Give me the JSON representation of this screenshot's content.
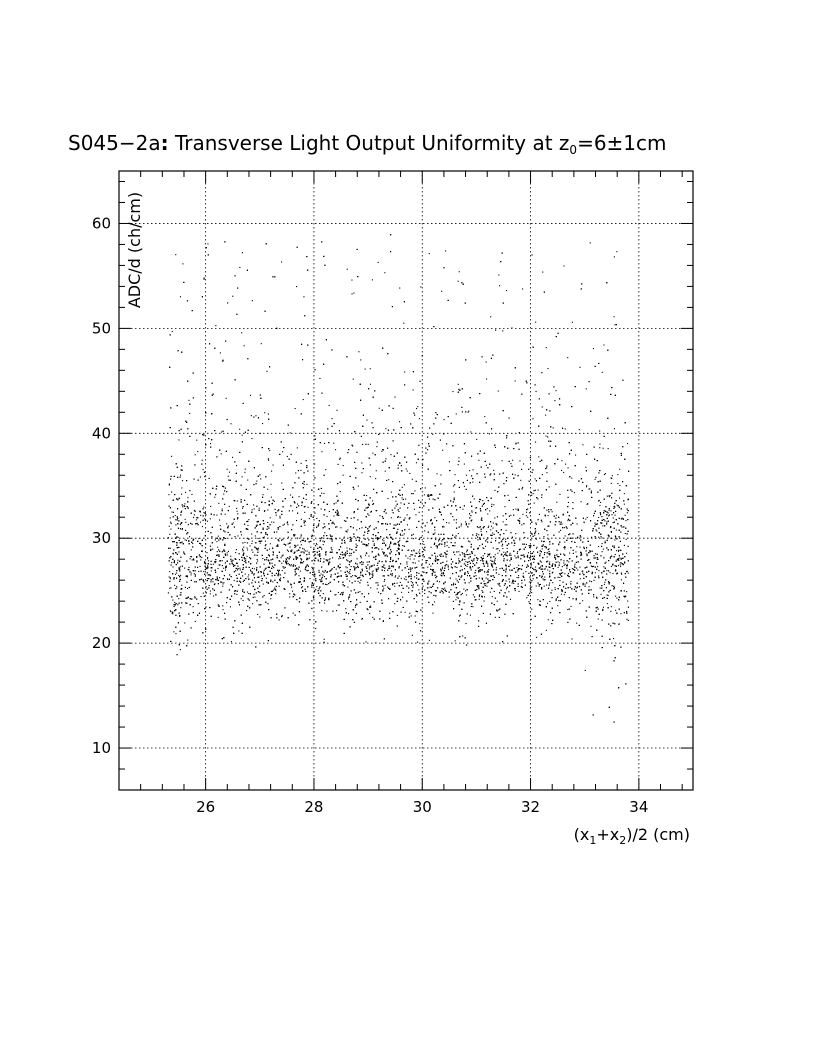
{
  "chart_data": {
    "type": "scatter",
    "title_main": "S045−2a",
    "title_colon": ":",
    "title_rest": " Transverse Light Output Uniformity at z",
    "title_sub": "0",
    "title_end": "=6±1cm",
    "xlabel_parts": [
      "(x",
      "1",
      "+x",
      "2",
      ")/2 (cm)"
    ],
    "ylabel": "ADC/d (ch/cm)",
    "xlim": [
      24.4,
      35.0
    ],
    "ylim": [
      6.0,
      65.0
    ],
    "xticks": [
      26,
      28,
      30,
      32,
      34
    ],
    "xtick_labels": [
      "26",
      "28",
      "30",
      "32",
      "34"
    ],
    "yticks": [
      10,
      20,
      30,
      40,
      50,
      60
    ],
    "ytick_labels": [
      "10",
      "20",
      "30",
      "40",
      "50",
      "60"
    ],
    "x_minor_step": 0.4,
    "y_minor_step": 2,
    "grid": true,
    "series": [
      {
        "points_description": "dense scatter of events",
        "x_range": [
          25.3,
          33.8
        ],
        "core_y_center": 27.5,
        "n_points": 9000
      }
    ]
  }
}
